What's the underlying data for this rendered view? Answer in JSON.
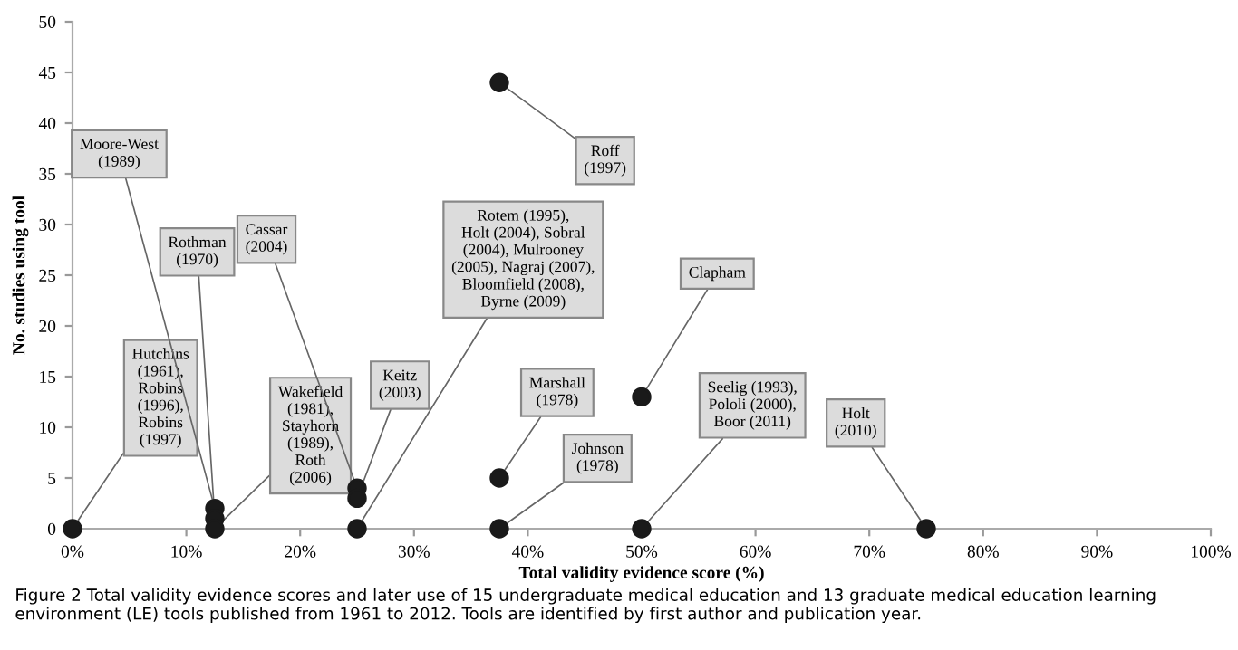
{
  "chart_data": {
    "type": "scatter",
    "xlabel": "Total validity evidence score (%)",
    "ylabel": "No. studies using tool",
    "xlim": [
      0,
      100
    ],
    "ylim": [
      0,
      50
    ],
    "xticks": [
      {
        "value": 0,
        "label": "0%"
      },
      {
        "value": 10,
        "label": "10%"
      },
      {
        "value": 20,
        "label": "20%"
      },
      {
        "value": 30,
        "label": "30%"
      },
      {
        "value": 40,
        "label": "40%"
      },
      {
        "value": 50,
        "label": "50%"
      },
      {
        "value": 60,
        "label": "60%"
      },
      {
        "value": 70,
        "label": "70%"
      },
      {
        "value": 80,
        "label": "80%"
      },
      {
        "value": 90,
        "label": "90%"
      },
      {
        "value": 100,
        "label": "100%"
      }
    ],
    "yticks": [
      0,
      5,
      10,
      15,
      20,
      25,
      30,
      35,
      40,
      45,
      50
    ],
    "grid": false,
    "legend": false,
    "marker": "circle",
    "series": [
      {
        "color": "#1a1a1a",
        "x": [
          0,
          12.5,
          12.5,
          12.5,
          25,
          25,
          25,
          37.5,
          37.5,
          37.5,
          50,
          50,
          75
        ],
        "values": [
          0,
          2,
          1,
          0,
          4,
          3,
          0,
          44,
          5,
          0,
          13,
          0,
          0
        ]
      }
    ],
    "annotations": [
      {
        "text": "Hutchins\n(1961),\nRobins\n(1996),\nRobins\n(1997)",
        "x": 0,
        "y": 0
      },
      {
        "text": "Moore-West\n(1989)",
        "x": 12.5,
        "y": 2
      },
      {
        "text": "Rothman\n(1970)",
        "x": 12.5,
        "y": 1
      },
      {
        "text": "Wakefield\n(1981),\nStayhorn\n(1989),\nRoth\n(2006)",
        "x": 12.5,
        "y": 0
      },
      {
        "text": "Cassar\n(2004)",
        "x": 25,
        "y": 4
      },
      {
        "text": "Keitz\n(2003)",
        "x": 25,
        "y": 3
      },
      {
        "text": "Rotem (1995),\nHolt (2004), Sobral\n(2004), Mulrooney\n(2005), Nagraj (2007),\nBloomfield (2008),\nByrne (2009)",
        "x": 25,
        "y": 0
      },
      {
        "text": "Roff\n(1997)",
        "x": 37.5,
        "y": 44
      },
      {
        "text": "Marshall\n(1978)",
        "x": 37.5,
        "y": 5
      },
      {
        "text": "Johnson\n(1978)",
        "x": 37.5,
        "y": 0
      },
      {
        "text": "Clapham",
        "x": 50,
        "y": 13
      },
      {
        "text": "Seelig (1993),\nPololi (2000),\nBoor (2011)",
        "x": 50,
        "y": 0
      },
      {
        "text": "Holt\n(2010)",
        "x": 75,
        "y": 0
      },
      "Figure 2 Total validity evidence scores and later use of 15 undergraduate medical education and 13 graduate medical education learning environment (LE) tools published from 1961 to 2012. Tools are identified by first author and publication year."
    ]
  }
}
